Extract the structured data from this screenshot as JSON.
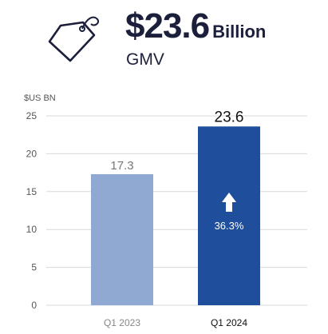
{
  "headline": {
    "value": "$23.6",
    "unit": "Billion",
    "subtitle": "GMV",
    "icon": "price-tag-icon"
  },
  "chart_data": {
    "type": "bar",
    "ylabel": "$US BN",
    "ylim": [
      0,
      25
    ],
    "yticks": [
      0,
      5,
      10,
      15,
      20,
      25
    ],
    "grid": true,
    "categories": [
      "Q1 2023",
      "Q1 2024"
    ],
    "values": [
      17.3,
      23.6
    ],
    "value_labels": [
      "17.3",
      "23.6"
    ],
    "bar_colors": [
      "#8fa9d3",
      "#1f4e9c"
    ],
    "label_colors": [
      "#777777",
      "#111111"
    ],
    "growth": {
      "label": "36.3%",
      "icon": "arrow-up-icon",
      "category": "Q1 2024"
    }
  }
}
